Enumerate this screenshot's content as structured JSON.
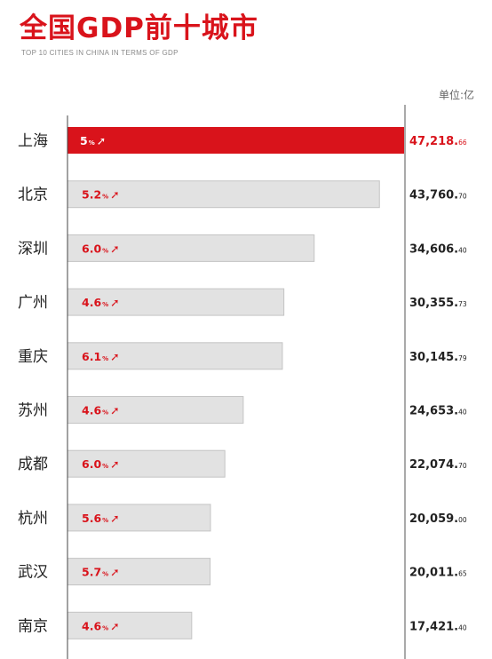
{
  "header": {
    "title": "全国GDP前十城市",
    "subtitle": "TOP 10 CITIES IN CHINA IN TERMS OF GDP",
    "unit": "单位:亿"
  },
  "colors": {
    "accent": "#d9131b",
    "bar_gray": "#e2e2e2",
    "text_dark": "#222222"
  },
  "chart_data": {
    "type": "bar",
    "orientation": "horizontal",
    "title": "全国GDP前十城市",
    "subtitle": "TOP 10 CITIES IN CHINA IN TERMS OF GDP",
    "unit": "单位:亿",
    "categories": [
      "上海",
      "北京",
      "深圳",
      "广州",
      "重庆",
      "苏州",
      "成都",
      "杭州",
      "武汉",
      "南京"
    ],
    "values": [
      47218.66,
      43760.7,
      34606.4,
      30355.73,
      30145.79,
      24653.4,
      22074.7,
      20059.0,
      20011.65,
      17421.4
    ],
    "value_labels": [
      {
        "main": "47,218.",
        "dec": "66"
      },
      {
        "main": "43,760.",
        "dec": "70"
      },
      {
        "main": "34,606.",
        "dec": "40"
      },
      {
        "main": "30,355.",
        "dec": "73"
      },
      {
        "main": "30,145.",
        "dec": "79"
      },
      {
        "main": "24,653.",
        "dec": "40"
      },
      {
        "main": "22,074.",
        "dec": "70"
      },
      {
        "main": "20,059.",
        "dec": "00"
      },
      {
        "main": "20,011.",
        "dec": "65"
      },
      {
        "main": "17,421.",
        "dec": "40"
      }
    ],
    "growth_labels": [
      "5",
      "5.2",
      "6.0",
      "4.6",
      "6.1",
      "4.6",
      "6.0",
      "5.6",
      "5.7",
      "4.6"
    ],
    "growth_unit": "%",
    "growth_arrow": "➚",
    "highlight_index": 0,
    "grid": false
  }
}
